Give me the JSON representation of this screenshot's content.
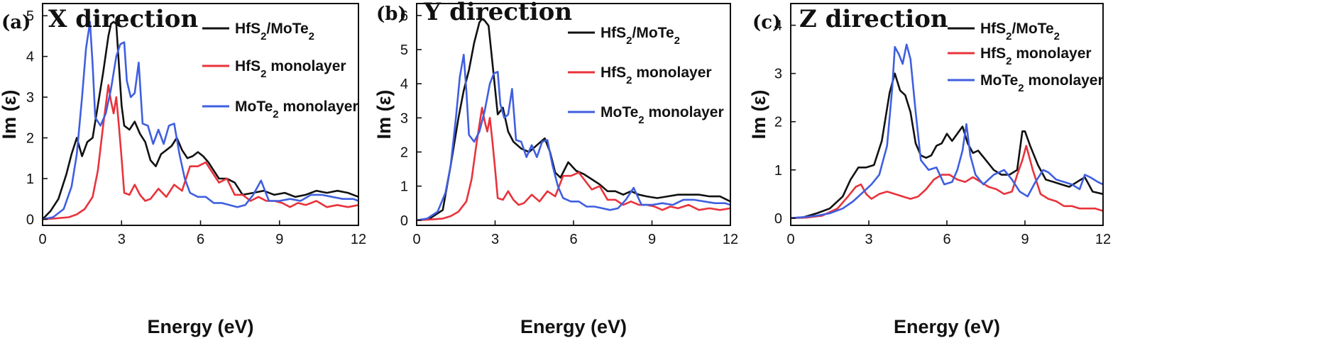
{
  "chart_data": [
    {
      "type": "line",
      "panel": "(a)",
      "title": "X direction",
      "xlabel": "Energy (eV)",
      "ylabel": "Im (ε)",
      "xlim": [
        0,
        12
      ],
      "ylim": [
        -0.15,
        5.3
      ],
      "xticks": [
        0,
        3,
        6,
        9,
        12
      ],
      "yticks": [
        0,
        1,
        2,
        3,
        4,
        5
      ],
      "legend": "top-right",
      "grid": false,
      "series": [
        {
          "name": "HfS₂/MoTe₂",
          "color": "#111111",
          "x": [
            0,
            0.3,
            0.6,
            0.9,
            1.1,
            1.3,
            1.5,
            1.7,
            1.9,
            2.1,
            2.3,
            2.5,
            2.6,
            2.7,
            2.8,
            2.9,
            3.0,
            3.1,
            3.3,
            3.5,
            3.7,
            3.9,
            4.1,
            4.3,
            4.5,
            4.7,
            4.9,
            5.1,
            5.3,
            5.5,
            5.7,
            5.9,
            6.1,
            6.3,
            6.5,
            6.7,
            7.0,
            7.3,
            7.6,
            8.0,
            8.4,
            8.8,
            9.2,
            9.6,
            10.0,
            10.4,
            10.8,
            11.2,
            11.6,
            12.0
          ],
          "y": [
            0,
            0.2,
            0.5,
            1.1,
            1.6,
            2.0,
            1.55,
            1.9,
            2.0,
            2.8,
            3.6,
            4.5,
            4.8,
            4.85,
            4.8,
            3.8,
            2.8,
            2.3,
            2.2,
            2.4,
            2.1,
            1.9,
            1.45,
            1.3,
            1.6,
            1.7,
            1.8,
            2.0,
            1.7,
            1.5,
            1.55,
            1.65,
            1.55,
            1.4,
            1.2,
            1.0,
            1.0,
            0.9,
            0.6,
            0.65,
            0.7,
            0.6,
            0.65,
            0.55,
            0.6,
            0.7,
            0.65,
            0.7,
            0.65,
            0.55
          ]
        },
        {
          "name": "HfS₂ monolayer",
          "color": "#e8333b",
          "x": [
            0,
            0.5,
            1.0,
            1.3,
            1.6,
            1.9,
            2.1,
            2.3,
            2.5,
            2.6,
            2.7,
            2.8,
            2.9,
            3.0,
            3.1,
            3.3,
            3.5,
            3.7,
            3.9,
            4.1,
            4.4,
            4.7,
            5.0,
            5.3,
            5.6,
            5.9,
            6.2,
            6.4,
            6.7,
            7.0,
            7.3,
            7.6,
            7.9,
            8.2,
            8.5,
            8.8,
            9.1,
            9.4,
            9.7,
            10.0,
            10.4,
            10.8,
            11.2,
            11.6,
            12.0
          ],
          "y": [
            0,
            0.02,
            0.05,
            0.12,
            0.25,
            0.55,
            1.2,
            2.3,
            3.3,
            2.9,
            2.6,
            3.0,
            2.3,
            1.5,
            0.65,
            0.6,
            0.85,
            0.6,
            0.45,
            0.5,
            0.75,
            0.55,
            0.85,
            0.7,
            1.3,
            1.3,
            1.4,
            1.2,
            0.9,
            1.0,
            0.6,
            0.6,
            0.45,
            0.55,
            0.45,
            0.45,
            0.4,
            0.3,
            0.4,
            0.35,
            0.45,
            0.3,
            0.35,
            0.3,
            0.35
          ]
        },
        {
          "name": "MoTe₂ monolayer",
          "color": "#3f5fe0",
          "x": [
            0,
            0.4,
            0.8,
            1.1,
            1.3,
            1.5,
            1.65,
            1.8,
            1.9,
            2.0,
            2.2,
            2.4,
            2.6,
            2.8,
            2.95,
            3.1,
            3.2,
            3.35,
            3.5,
            3.65,
            3.8,
            4.0,
            4.2,
            4.4,
            4.6,
            4.8,
            5.0,
            5.2,
            5.4,
            5.6,
            5.9,
            6.2,
            6.5,
            6.8,
            7.1,
            7.4,
            7.7,
            8.0,
            8.3,
            8.6,
            9.0,
            9.4,
            9.8,
            10.2,
            10.6,
            11.0,
            11.4,
            11.8,
            12.0
          ],
          "y": [
            0,
            0.05,
            0.25,
            0.8,
            1.6,
            3.0,
            4.2,
            4.85,
            3.8,
            2.5,
            2.3,
            2.6,
            3.2,
            4.0,
            4.3,
            4.35,
            3.4,
            3.0,
            3.1,
            3.85,
            2.35,
            2.3,
            1.85,
            2.2,
            1.85,
            2.3,
            2.35,
            1.6,
            1.0,
            0.65,
            0.55,
            0.55,
            0.4,
            0.4,
            0.35,
            0.3,
            0.35,
            0.6,
            0.95,
            0.45,
            0.45,
            0.5,
            0.45,
            0.6,
            0.6,
            0.55,
            0.5,
            0.5,
            0.45
          ]
        }
      ]
    },
    {
      "type": "line",
      "panel": "(b)",
      "title": "Y direction",
      "xlabel": "Energy (eV)",
      "ylabel": "Im (ε)",
      "xlim": [
        0,
        12
      ],
      "ylim": [
        -0.15,
        6.35
      ],
      "xticks": [
        0,
        3,
        6,
        9,
        12
      ],
      "yticks": [
        0,
        1,
        2,
        3,
        4,
        5,
        6
      ],
      "legend": "top-right",
      "grid": false,
      "series": [
        {
          "name": "HfS₂/MoTe₂",
          "color": "#111111",
          "x": [
            0,
            0.5,
            1.0,
            1.3,
            1.6,
            1.8,
            2.0,
            2.2,
            2.4,
            2.5,
            2.6,
            2.75,
            2.9,
            3.1,
            3.3,
            3.5,
            3.7,
            4.0,
            4.3,
            4.6,
            4.9,
            5.1,
            5.3,
            5.5,
            5.8,
            6.1,
            6.4,
            6.7,
            7.0,
            7.3,
            7.6,
            7.9,
            8.2,
            8.5,
            8.8,
            9.2,
            9.6,
            10.0,
            10.4,
            10.8,
            11.2,
            11.6,
            12.0
          ],
          "y": [
            0,
            0.05,
            0.3,
            1.6,
            3.0,
            3.8,
            4.4,
            5.2,
            5.8,
            5.9,
            5.85,
            5.7,
            4.6,
            3.1,
            3.3,
            2.6,
            2.3,
            2.1,
            2.0,
            2.2,
            2.4,
            2.0,
            1.4,
            1.25,
            1.7,
            1.45,
            1.35,
            1.2,
            1.05,
            0.85,
            0.85,
            0.75,
            0.85,
            0.75,
            0.7,
            0.65,
            0.7,
            0.75,
            0.75,
            0.75,
            0.7,
            0.7,
            0.55
          ]
        },
        {
          "name": "HfS₂ monolayer",
          "color": "#e8333b",
          "x": [
            0,
            0.5,
            1.0,
            1.3,
            1.6,
            1.9,
            2.1,
            2.3,
            2.5,
            2.6,
            2.7,
            2.8,
            2.9,
            3.0,
            3.1,
            3.3,
            3.5,
            3.7,
            3.9,
            4.1,
            4.4,
            4.7,
            5.0,
            5.3,
            5.6,
            5.9,
            6.2,
            6.4,
            6.7,
            7.0,
            7.3,
            7.6,
            7.9,
            8.2,
            8.5,
            8.8,
            9.1,
            9.4,
            9.7,
            10.0,
            10.4,
            10.8,
            11.2,
            11.6,
            12.0
          ],
          "y": [
            0,
            0.02,
            0.05,
            0.12,
            0.25,
            0.55,
            1.2,
            2.3,
            3.3,
            2.9,
            2.6,
            3.0,
            2.3,
            1.5,
            0.65,
            0.6,
            0.85,
            0.6,
            0.45,
            0.5,
            0.75,
            0.55,
            0.85,
            0.7,
            1.3,
            1.3,
            1.4,
            1.2,
            0.9,
            1.0,
            0.6,
            0.6,
            0.45,
            0.55,
            0.45,
            0.45,
            0.4,
            0.3,
            0.4,
            0.35,
            0.45,
            0.3,
            0.35,
            0.3,
            0.35
          ]
        },
        {
          "name": "MoTe₂ monolayer",
          "color": "#3f5fe0",
          "x": [
            0,
            0.4,
            0.8,
            1.1,
            1.3,
            1.5,
            1.65,
            1.8,
            1.9,
            2.0,
            2.2,
            2.4,
            2.6,
            2.8,
            2.95,
            3.1,
            3.2,
            3.35,
            3.5,
            3.65,
            3.8,
            4.0,
            4.2,
            4.4,
            4.6,
            4.8,
            5.0,
            5.2,
            5.4,
            5.6,
            5.9,
            6.2,
            6.5,
            6.8,
            7.1,
            7.4,
            7.7,
            8.0,
            8.3,
            8.6,
            9.0,
            9.4,
            9.8,
            10.2,
            10.6,
            11.0,
            11.4,
            11.8,
            12.0
          ],
          "y": [
            0,
            0.05,
            0.25,
            0.8,
            1.6,
            3.0,
            4.2,
            4.85,
            3.8,
            2.5,
            2.3,
            2.6,
            3.2,
            4.0,
            4.3,
            4.35,
            3.4,
            3.0,
            3.1,
            3.85,
            2.35,
            2.3,
            1.85,
            2.2,
            1.85,
            2.3,
            2.35,
            1.6,
            1.0,
            0.65,
            0.55,
            0.55,
            0.4,
            0.4,
            0.35,
            0.3,
            0.35,
            0.6,
            0.95,
            0.45,
            0.45,
            0.5,
            0.45,
            0.6,
            0.6,
            0.55,
            0.5,
            0.5,
            0.45
          ]
        }
      ]
    },
    {
      "type": "line",
      "panel": "(c)",
      "title": "Z direction",
      "xlabel": "Energy (eV)",
      "ylabel": "Im (ε)",
      "xlim": [
        0,
        12
      ],
      "ylim": [
        -0.15,
        4.45
      ],
      "xticks": [
        0,
        3,
        6,
        9,
        12
      ],
      "yticks": [
        0,
        1,
        2,
        3,
        4
      ],
      "legend": "top-right",
      "grid": false,
      "series": [
        {
          "name": "HfS₂/MoTe₂",
          "color": "#111111",
          "x": [
            0,
            0.5,
            1.0,
            1.5,
            2.0,
            2.3,
            2.6,
            2.9,
            3.2,
            3.5,
            3.8,
            4.0,
            4.2,
            4.4,
            4.6,
            4.8,
            5.0,
            5.2,
            5.4,
            5.6,
            5.8,
            6.0,
            6.2,
            6.4,
            6.6,
            6.8,
            7.0,
            7.2,
            7.5,
            7.8,
            8.1,
            8.4,
            8.7,
            8.9,
            9.0,
            9.2,
            9.5,
            9.8,
            10.1,
            10.4,
            10.7,
            11.0,
            11.3,
            11.6,
            12.0
          ],
          "y": [
            0,
            0.02,
            0.1,
            0.2,
            0.45,
            0.8,
            1.05,
            1.05,
            1.1,
            1.6,
            2.6,
            3.0,
            2.65,
            2.55,
            2.2,
            1.55,
            1.3,
            1.25,
            1.3,
            1.5,
            1.55,
            1.75,
            1.6,
            1.75,
            1.9,
            1.55,
            1.35,
            1.4,
            1.2,
            1.0,
            0.9,
            0.9,
            1.0,
            1.8,
            1.8,
            1.5,
            1.1,
            0.8,
            0.75,
            0.7,
            0.65,
            0.75,
            0.85,
            0.55,
            0.5
          ]
        },
        {
          "name": "HfS₂ monolayer",
          "color": "#e8333b",
          "x": [
            0,
            0.6,
            1.2,
            1.8,
            2.2,
            2.5,
            2.7,
            2.9,
            3.1,
            3.4,
            3.7,
            4.0,
            4.3,
            4.6,
            4.9,
            5.2,
            5.5,
            5.8,
            6.1,
            6.4,
            6.7,
            7.0,
            7.3,
            7.6,
            7.9,
            8.2,
            8.5,
            8.7,
            8.9,
            9.05,
            9.3,
            9.6,
            9.9,
            10.2,
            10.5,
            10.8,
            11.1,
            11.4,
            11.7,
            12.0
          ],
          "y": [
            0,
            0.01,
            0.05,
            0.2,
            0.45,
            0.65,
            0.7,
            0.5,
            0.4,
            0.5,
            0.55,
            0.5,
            0.45,
            0.4,
            0.45,
            0.6,
            0.8,
            0.9,
            0.9,
            0.8,
            0.75,
            0.85,
            0.75,
            0.65,
            0.6,
            0.5,
            0.55,
            0.9,
            1.2,
            1.5,
            1.0,
            0.5,
            0.4,
            0.35,
            0.25,
            0.25,
            0.2,
            0.2,
            0.2,
            0.15
          ]
        },
        {
          "name": "MoTe₂ monolayer",
          "color": "#3f5fe0",
          "x": [
            0,
            0.5,
            1.0,
            1.5,
            2.0,
            2.4,
            2.8,
            3.1,
            3.4,
            3.7,
            3.9,
            4.0,
            4.15,
            4.3,
            4.45,
            4.6,
            4.8,
            5.0,
            5.3,
            5.6,
            5.9,
            6.2,
            6.4,
            6.6,
            6.75,
            6.9,
            7.1,
            7.4,
            7.8,
            8.2,
            8.5,
            8.8,
            9.1,
            9.4,
            9.7,
            9.9,
            10.2,
            10.5,
            10.8,
            11.1,
            11.3,
            11.5,
            11.8,
            12.0
          ],
          "y": [
            0,
            0.02,
            0.05,
            0.1,
            0.2,
            0.35,
            0.55,
            0.7,
            0.9,
            1.5,
            2.7,
            3.55,
            3.4,
            3.2,
            3.6,
            3.3,
            2.2,
            1.2,
            1.0,
            1.05,
            0.7,
            0.75,
            1.0,
            1.4,
            1.95,
            1.3,
            0.9,
            0.7,
            0.9,
            1.0,
            0.8,
            0.55,
            0.45,
            0.75,
            1.0,
            0.95,
            0.8,
            0.75,
            0.7,
            0.6,
            0.9,
            0.85,
            0.75,
            0.7
          ]
        }
      ]
    }
  ]
}
